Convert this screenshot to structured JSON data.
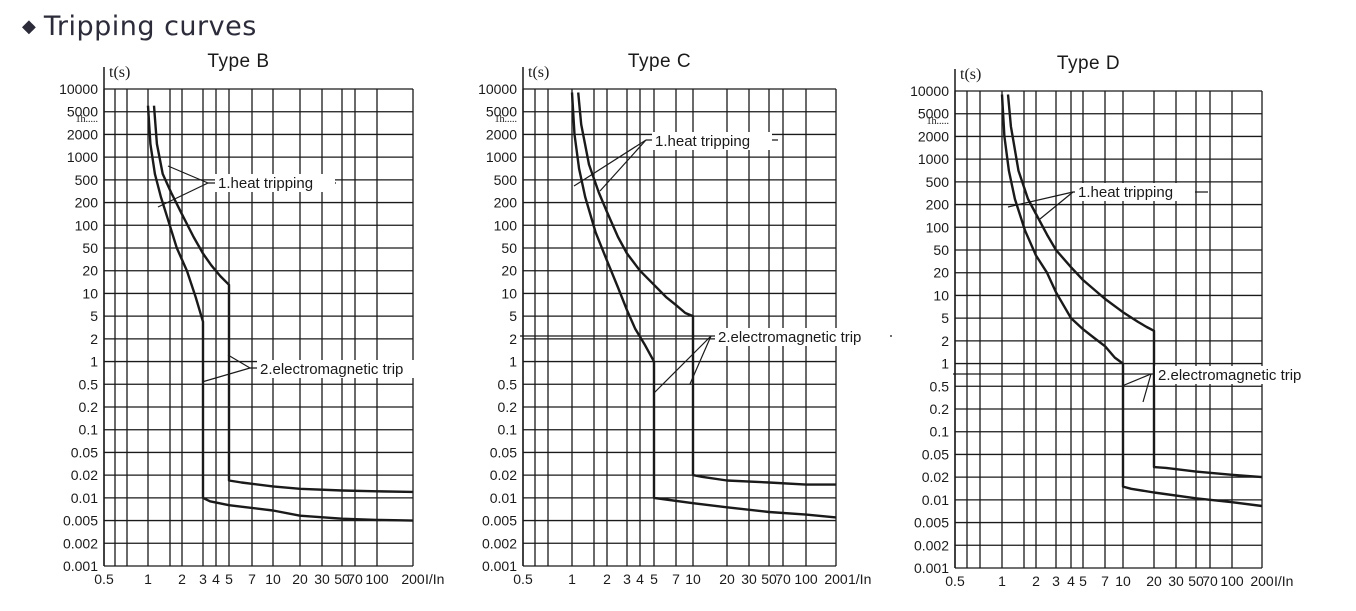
{
  "header": {
    "title": "Tripping curves",
    "bullet_icon": "diamond-icon"
  },
  "chart_data": [
    {
      "type": "line",
      "title": "Type B",
      "ylabel": "t(s)",
      "xlabel": "I/In",
      "y_scale": "log",
      "x_scale": "log",
      "ylim": [
        0.001,
        10000
      ],
      "xlim": [
        0.5,
        200
      ],
      "y_ticks": [
        "10000",
        "5000",
        "2000",
        "1000",
        "500",
        "200",
        "100",
        "50",
        "20",
        "10",
        "5",
        "2",
        "1",
        "0.5",
        "0.2",
        "0.1",
        "0.05",
        "0.02",
        "0.01",
        "0.005",
        "0.002",
        "0.001"
      ],
      "x_ticks": [
        "0.5",
        "1",
        "2",
        "3",
        "4",
        "5",
        "7",
        "10",
        "20",
        "30",
        "50",
        "70",
        "100",
        "200"
      ],
      "extra_label": "1h",
      "series": [
        {
          "x": [
            1.0,
            1.05,
            1.15,
            1.3,
            1.5,
            1.8,
            2.2,
            2.6,
            3,
            3,
            3.5,
            5,
            10,
            20,
            50,
            100,
            200
          ],
          "y": [
            6000,
            1500,
            600,
            250,
            120,
            50,
            20,
            9,
            4,
            0.01,
            0.009,
            0.008,
            0.0068,
            0.0058,
            0.0053,
            0.0051,
            0.005
          ]
        },
        {
          "x": [
            1.13,
            1.2,
            1.35,
            1.6,
            2,
            2.5,
            3,
            3.6,
            4.3,
            5,
            5,
            6,
            10,
            20,
            50,
            100,
            200
          ],
          "y": [
            6000,
            1500,
            600,
            300,
            140,
            70,
            40,
            25,
            17,
            13,
            0.017,
            0.016,
            0.0142,
            0.0132,
            0.0125,
            0.0122,
            0.012
          ]
        }
      ],
      "annotations": [
        "1.heat tripping",
        "2.electromagnetic trip"
      ]
    },
    {
      "type": "line",
      "title": "Type C",
      "ylabel": "t(s)",
      "xlabel": "1/In",
      "y_scale": "log",
      "x_scale": "log",
      "ylim": [
        0.001,
        10000
      ],
      "xlim": [
        0.5,
        200
      ],
      "y_ticks": [
        "10000",
        "5000",
        "2000",
        "1000",
        "500",
        "200",
        "100",
        "50",
        "20",
        "10",
        "5",
        "2",
        "1",
        "0.5",
        "0.2",
        "0.1",
        "0.05",
        "0.02",
        "0.01",
        "0.005",
        "0.002",
        "0.001"
      ],
      "x_ticks": [
        "0.5",
        "1",
        "2",
        "3",
        "4",
        "5",
        "7",
        "10",
        "20",
        "30",
        "50",
        "70",
        "100",
        "200"
      ],
      "extra_label": "1h",
      "series": [
        {
          "x": [
            1.0,
            1.05,
            1.15,
            1.3,
            1.6,
            2,
            2.5,
            3,
            3.6,
            4.3,
            5,
            5,
            6,
            10,
            20,
            50,
            100,
            200
          ],
          "y": [
            9000,
            2000,
            700,
            250,
            80,
            30,
            12,
            6,
            3,
            1.7,
            1,
            0.01,
            0.0095,
            0.0085,
            0.0075,
            0.0065,
            0.006,
            0.0055
          ]
        },
        {
          "x": [
            1.13,
            1.2,
            1.4,
            1.7,
            2,
            2.5,
            3,
            4,
            5,
            6,
            7,
            8.5,
            10,
            10,
            12,
            20,
            50,
            100,
            200
          ],
          "y": [
            9000,
            3000,
            800,
            300,
            150,
            70,
            40,
            20,
            13,
            9,
            7,
            5.5,
            5,
            0.02,
            0.019,
            0.017,
            0.016,
            0.015,
            0.015
          ]
        }
      ],
      "annotations": [
        "1.heat tripping",
        "2.electromagnetic trip"
      ]
    },
    {
      "type": "line",
      "title": "Type D",
      "ylabel": "t(s)",
      "xlabel": "I/In",
      "y_scale": "log",
      "x_scale": "log",
      "ylim": [
        0.001,
        10000
      ],
      "xlim": [
        0.5,
        200
      ],
      "y_ticks": [
        "10000",
        "5000",
        "2000",
        "1000",
        "500",
        "200",
        "100",
        "50",
        "20",
        "10",
        "5",
        "2",
        "1",
        "0.5",
        "0.2",
        "0.1",
        "0.05",
        "0.02",
        "0.01",
        "0.005",
        "0.002",
        "0.001"
      ],
      "x_ticks": [
        "0.5",
        "1",
        "2",
        "3",
        "4",
        "5",
        "7",
        "10",
        "20",
        "30",
        "50",
        "70",
        "100",
        "200"
      ],
      "extra_label": "1h",
      "series": [
        {
          "x": [
            1.0,
            1.05,
            1.15,
            1.3,
            1.6,
            2,
            2.5,
            3,
            4,
            5,
            6,
            7,
            8.5,
            10,
            10,
            12,
            20,
            50,
            100,
            200
          ],
          "y": [
            9000,
            2000,
            700,
            250,
            90,
            40,
            20,
            11,
            5,
            3.2,
            2.2,
            1.7,
            1.2,
            1,
            0.015,
            0.014,
            0.0125,
            0.0105,
            0.0093,
            0.0083
          ]
        },
        {
          "x": [
            1.13,
            1.2,
            1.4,
            1.7,
            2,
            2.5,
            3,
            4,
            5,
            7,
            10,
            14,
            17,
            20,
            20,
            25,
            50,
            100,
            200
          ],
          "y": [
            9000,
            3000,
            700,
            250,
            150,
            80,
            50,
            25,
            16,
            9,
            6,
            4.3,
            3.5,
            3,
            0.03,
            0.029,
            0.025,
            0.022,
            0.02
          ]
        }
      ],
      "annotations": [
        "1.heat tripping",
        "2.electromagnetic trip"
      ]
    }
  ]
}
